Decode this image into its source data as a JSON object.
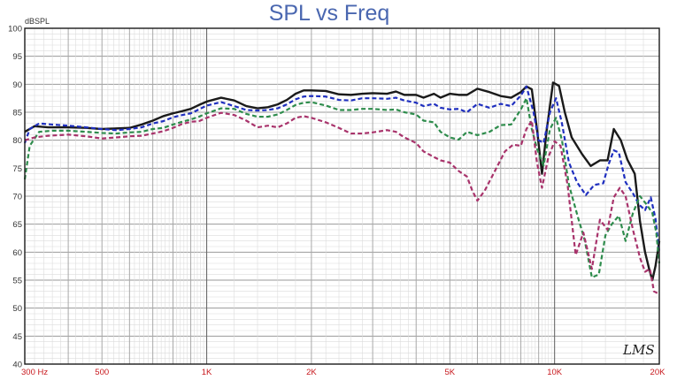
{
  "chart_data": {
    "type": "line",
    "title": "SPL vs Freq",
    "ylabel": "dBSPL",
    "xlabel": "",
    "xscale": "log",
    "xlim": [
      300,
      20000
    ],
    "ylim": [
      40,
      100
    ],
    "grid": true,
    "legend": "none",
    "logo": "LMS",
    "yticks": [
      {
        "value": 40,
        "label": "40"
      },
      {
        "value": 45,
        "label": "45"
      },
      {
        "value": 50,
        "label": "50"
      },
      {
        "value": 55,
        "label": "55"
      },
      {
        "value": 60,
        "label": "60"
      },
      {
        "value": 65,
        "label": "65"
      },
      {
        "value": 70,
        "label": "70"
      },
      {
        "value": 75,
        "label": "75"
      },
      {
        "value": 80,
        "label": "80"
      },
      {
        "value": 85,
        "label": "85"
      },
      {
        "value": 90,
        "label": "90"
      },
      {
        "value": 95,
        "label": "95"
      },
      {
        "value": 100,
        "label": "100"
      }
    ],
    "xticks": [
      {
        "value": 300,
        "label": "300  Hz"
      },
      {
        "value": 500,
        "label": "500"
      },
      {
        "value": 1000,
        "label": "1K"
      },
      {
        "value": 2000,
        "label": "2K"
      },
      {
        "value": 5000,
        "label": "5K"
      },
      {
        "value": 10000,
        "label": "10K"
      },
      {
        "value": 20000,
        "label": "20K"
      }
    ],
    "series": [
      {
        "color": "#1a1a1a",
        "dash": "solid",
        "points": [
          [
            300,
            81.5
          ],
          [
            320,
            82.5
          ],
          [
            350,
            82.3
          ],
          [
            400,
            82.3
          ],
          [
            450,
            82.2
          ],
          [
            500,
            82
          ],
          [
            550,
            82.1
          ],
          [
            600,
            82.2
          ],
          [
            650,
            82.8
          ],
          [
            700,
            83.5
          ],
          [
            750,
            84.3
          ],
          [
            800,
            84.8
          ],
          [
            850,
            85.2
          ],
          [
            900,
            85.6
          ],
          [
            950,
            86.3
          ],
          [
            1000,
            86.9
          ],
          [
            1100,
            87.6
          ],
          [
            1200,
            87.1
          ],
          [
            1300,
            86.1
          ],
          [
            1400,
            85.7
          ],
          [
            1500,
            85.9
          ],
          [
            1600,
            86.4
          ],
          [
            1700,
            87.2
          ],
          [
            1800,
            88.3
          ],
          [
            1900,
            88.9
          ],
          [
            2000,
            88.9
          ],
          [
            2200,
            88.8
          ],
          [
            2400,
            88.2
          ],
          [
            2600,
            88.1
          ],
          [
            2800,
            88.3
          ],
          [
            3000,
            88.4
          ],
          [
            3300,
            88.3
          ],
          [
            3500,
            88.7
          ],
          [
            3700,
            88.1
          ],
          [
            4000,
            88.1
          ],
          [
            4200,
            87.6
          ],
          [
            4500,
            88.3
          ],
          [
            4700,
            87.6
          ],
          [
            5000,
            88.3
          ],
          [
            5300,
            88.1
          ],
          [
            5600,
            88.1
          ],
          [
            6000,
            89.2
          ],
          [
            6500,
            88.6
          ],
          [
            7000,
            87.9
          ],
          [
            7500,
            87.6
          ],
          [
            8000,
            88.6
          ],
          [
            8300,
            89.6
          ],
          [
            8600,
            89.1
          ],
          [
            8900,
            82
          ],
          [
            9200,
            74
          ],
          [
            9500,
            82
          ],
          [
            9900,
            90.3
          ],
          [
            10300,
            89.7
          ],
          [
            10700,
            85
          ],
          [
            11200,
            80.5
          ],
          [
            12000,
            77.5
          ],
          [
            12700,
            75.4
          ],
          [
            13500,
            76.4
          ],
          [
            14200,
            76.4
          ],
          [
            14800,
            82
          ],
          [
            15500,
            80
          ],
          [
            16200,
            76.5
          ],
          [
            17000,
            74
          ],
          [
            17600,
            65.5
          ],
          [
            18200,
            60
          ],
          [
            18700,
            57
          ],
          [
            19100,
            55
          ],
          [
            19500,
            57.5
          ],
          [
            20000,
            62
          ]
        ]
      },
      {
        "color": "#1f2fbf",
        "dash": "dashed",
        "points": [
          [
            300,
            79.5
          ],
          [
            310,
            82
          ],
          [
            330,
            83
          ],
          [
            360,
            82.8
          ],
          [
            400,
            82.6
          ],
          [
            450,
            82.3
          ],
          [
            500,
            82
          ],
          [
            550,
            81.8
          ],
          [
            600,
            82
          ],
          [
            650,
            82.3
          ],
          [
            700,
            83
          ],
          [
            750,
            83.4
          ],
          [
            800,
            84.1
          ],
          [
            850,
            84.5
          ],
          [
            900,
            84.8
          ],
          [
            950,
            85.5
          ],
          [
            1000,
            86.2
          ],
          [
            1100,
            86.8
          ],
          [
            1200,
            86.1
          ],
          [
            1300,
            85.4
          ],
          [
            1400,
            85.3
          ],
          [
            1500,
            85.4
          ],
          [
            1600,
            85.7
          ],
          [
            1700,
            86.4
          ],
          [
            1800,
            87.3
          ],
          [
            1900,
            87.8
          ],
          [
            2000,
            87.9
          ],
          [
            2200,
            87.8
          ],
          [
            2400,
            87.2
          ],
          [
            2600,
            87.1
          ],
          [
            2800,
            87.5
          ],
          [
            3000,
            87.5
          ],
          [
            3300,
            87.4
          ],
          [
            3500,
            87.6
          ],
          [
            3700,
            87.1
          ],
          [
            4000,
            86.7
          ],
          [
            4200,
            86.1
          ],
          [
            4500,
            86.5
          ],
          [
            4700,
            85.8
          ],
          [
            5000,
            85.5
          ],
          [
            5300,
            85.6
          ],
          [
            5600,
            85
          ],
          [
            6000,
            86.5
          ],
          [
            6500,
            85.8
          ],
          [
            7000,
            86.5
          ],
          [
            7500,
            86.1
          ],
          [
            8000,
            88
          ],
          [
            8300,
            89.6
          ],
          [
            8700,
            85
          ],
          [
            9000,
            80
          ],
          [
            9300,
            79.5
          ],
          [
            9700,
            85
          ],
          [
            10100,
            87.5
          ],
          [
            10500,
            83
          ],
          [
            11000,
            76
          ],
          [
            11600,
            72.5
          ],
          [
            12300,
            70.2
          ],
          [
            13000,
            72
          ],
          [
            13800,
            72.3
          ],
          [
            14300,
            75.7
          ],
          [
            14800,
            78.2
          ],
          [
            15300,
            77.8
          ],
          [
            16000,
            72.5
          ],
          [
            16800,
            70.5
          ],
          [
            17500,
            68.5
          ],
          [
            18200,
            67.5
          ],
          [
            18900,
            69.8
          ],
          [
            19500,
            66
          ],
          [
            20000,
            60
          ]
        ]
      },
      {
        "color": "#2e8c4c",
        "dash": "dashed",
        "points": [
          [
            300,
            73
          ],
          [
            310,
            79
          ],
          [
            330,
            81.5
          ],
          [
            360,
            81.7
          ],
          [
            400,
            81.7
          ],
          [
            450,
            81.5
          ],
          [
            500,
            81.3
          ],
          [
            550,
            81.2
          ],
          [
            600,
            81.4
          ],
          [
            650,
            81.5
          ],
          [
            700,
            82
          ],
          [
            750,
            82.2
          ],
          [
            800,
            82.8
          ],
          [
            850,
            83.3
          ],
          [
            900,
            83.7
          ],
          [
            950,
            84.2
          ],
          [
            1000,
            84.8
          ],
          [
            1100,
            85.7
          ],
          [
            1200,
            85.6
          ],
          [
            1300,
            84.7
          ],
          [
            1400,
            84.2
          ],
          [
            1500,
            84.2
          ],
          [
            1600,
            84.6
          ],
          [
            1700,
            85.4
          ],
          [
            1800,
            86.3
          ],
          [
            1900,
            86.7
          ],
          [
            2000,
            86.8
          ],
          [
            2200,
            86.2
          ],
          [
            2400,
            85.4
          ],
          [
            2600,
            85.4
          ],
          [
            2800,
            85.6
          ],
          [
            3000,
            85.6
          ],
          [
            3300,
            85.4
          ],
          [
            3500,
            85.5
          ],
          [
            3700,
            85
          ],
          [
            4000,
            84.6
          ],
          [
            4200,
            83.5
          ],
          [
            4500,
            83.2
          ],
          [
            4700,
            81.5
          ],
          [
            5000,
            80.5
          ],
          [
            5300,
            80.1
          ],
          [
            5600,
            81.5
          ],
          [
            6000,
            80.9
          ],
          [
            6500,
            81.5
          ],
          [
            7000,
            82.7
          ],
          [
            7500,
            82.8
          ],
          [
            8000,
            85.5
          ],
          [
            8300,
            87.5
          ],
          [
            8600,
            82
          ],
          [
            8900,
            78.5
          ],
          [
            9300,
            75.5
          ],
          [
            9700,
            82
          ],
          [
            10100,
            84
          ],
          [
            10500,
            80
          ],
          [
            11000,
            72
          ],
          [
            11700,
            66
          ],
          [
            12200,
            62.2
          ],
          [
            12800,
            55.5
          ],
          [
            13400,
            56
          ],
          [
            14000,
            63
          ],
          [
            14600,
            65
          ],
          [
            15300,
            66.5
          ],
          [
            16000,
            62
          ],
          [
            16800,
            67
          ],
          [
            17600,
            70
          ],
          [
            18400,
            68.5
          ],
          [
            19100,
            67
          ],
          [
            19600,
            63.5
          ],
          [
            20000,
            58
          ]
        ]
      },
      {
        "color": "#a8336b",
        "dash": "dashed",
        "points": [
          [
            300,
            80
          ],
          [
            320,
            80.5
          ],
          [
            350,
            80.8
          ],
          [
            400,
            81
          ],
          [
            450,
            80.7
          ],
          [
            500,
            80.3
          ],
          [
            550,
            80.5
          ],
          [
            600,
            80.7
          ],
          [
            650,
            80.8
          ],
          [
            700,
            81.2
          ],
          [
            750,
            81.6
          ],
          [
            800,
            82.2
          ],
          [
            850,
            82.9
          ],
          [
            900,
            83.3
          ],
          [
            950,
            83.4
          ],
          [
            1000,
            84
          ],
          [
            1100,
            84.9
          ],
          [
            1200,
            84.5
          ],
          [
            1300,
            83.5
          ],
          [
            1400,
            82.3
          ],
          [
            1500,
            82.6
          ],
          [
            1600,
            82.3
          ],
          [
            1700,
            83
          ],
          [
            1800,
            84
          ],
          [
            1900,
            84.3
          ],
          [
            2000,
            84
          ],
          [
            2200,
            83.2
          ],
          [
            2400,
            82.2
          ],
          [
            2600,
            81.2
          ],
          [
            2800,
            81.2
          ],
          [
            3000,
            81.4
          ],
          [
            3300,
            81.8
          ],
          [
            3500,
            81.5
          ],
          [
            3700,
            80.5
          ],
          [
            4000,
            79.5
          ],
          [
            4200,
            78
          ],
          [
            4500,
            77
          ],
          [
            4700,
            76.4
          ],
          [
            5000,
            76
          ],
          [
            5300,
            74.5
          ],
          [
            5600,
            73.5
          ],
          [
            5800,
            71
          ],
          [
            6000,
            69.2
          ],
          [
            6300,
            71
          ],
          [
            6800,
            75
          ],
          [
            7200,
            78
          ],
          [
            7600,
            79.2
          ],
          [
            8000,
            79
          ],
          [
            8300,
            82
          ],
          [
            8600,
            83.5
          ],
          [
            8900,
            76
          ],
          [
            9200,
            71.5
          ],
          [
            9600,
            77
          ],
          [
            10000,
            79.8
          ],
          [
            10400,
            79
          ],
          [
            10900,
            72
          ],
          [
            11500,
            59.5
          ],
          [
            12100,
            63.5
          ],
          [
            12800,
            57
          ],
          [
            13500,
            65.8
          ],
          [
            14200,
            64
          ],
          [
            14800,
            69.8
          ],
          [
            15400,
            71.5
          ],
          [
            16000,
            70
          ],
          [
            16800,
            64
          ],
          [
            17600,
            59
          ],
          [
            18200,
            56.5
          ],
          [
            18800,
            57
          ],
          [
            19300,
            53
          ],
          [
            20000,
            52.5
          ]
        ]
      }
    ]
  }
}
